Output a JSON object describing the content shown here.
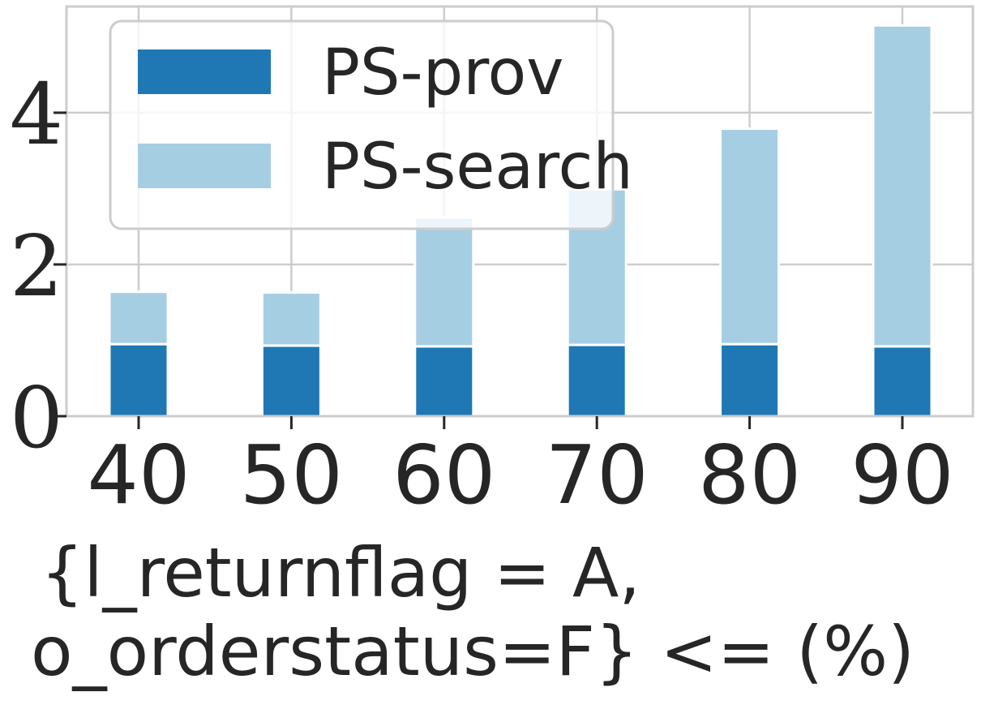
{
  "chart_data": {
    "type": "bar",
    "stacked": true,
    "categories": [
      "40",
      "50",
      "60",
      "70",
      "80",
      "90"
    ],
    "series": [
      {
        "name": "PS-prov",
        "values": [
          0.95,
          0.93,
          0.92,
          0.94,
          0.95,
          0.92
        ],
        "color": "#1f78b4"
      },
      {
        "name": "PS-search",
        "values": [
          0.69,
          0.7,
          1.7,
          2.05,
          2.84,
          4.23
        ],
        "color": "#a6cee3"
      }
    ],
    "xlabel_lines": [
      "{l_returnflag = A,",
      "o_orderstatus=F} <= (%)"
    ],
    "ylabel": "",
    "yticks": [
      "0",
      "2",
      "4"
    ],
    "ylim": [
      0,
      5.4
    ],
    "grid": true,
    "legend": {
      "placement": "top-left",
      "entries": [
        "PS-prov",
        "PS-search"
      ]
    },
    "colors": {
      "grid": "#cccccc",
      "axes": "#cccccc",
      "text": "#262626"
    }
  }
}
